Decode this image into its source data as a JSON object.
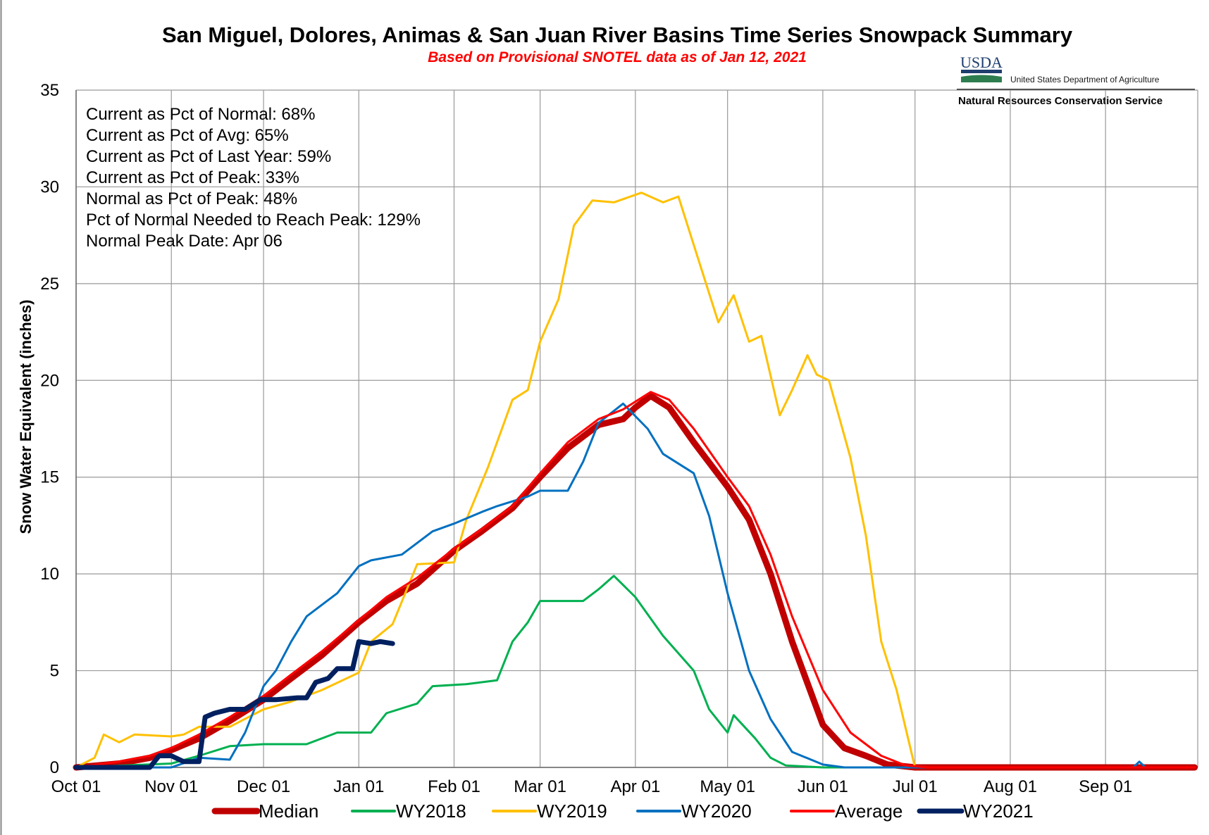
{
  "chart_data": {
    "type": "line",
    "title": "San Miguel, Dolores, Animas & San Juan River Basins Time Series Snowpack Summary",
    "subtitle": "Based on Provisional SNOTEL data as of Jan 12, 2021",
    "ylabel": "Snow Water Equivalent  (inches)",
    "xlabel": "",
    "ylim": [
      0,
      35
    ],
    "y_ticks": [
      "0",
      "5",
      "10",
      "15",
      "20",
      "25",
      "30",
      "35"
    ],
    "x_ticks": [
      "Oct 01",
      "Nov 01",
      "Dec 01",
      "Jan 01",
      "Feb 01",
      "Mar 01",
      "Apr 01",
      "May 01",
      "Jun 01",
      "Jul 01",
      "Aug 01",
      "Sep 01"
    ],
    "grid": true,
    "legend_position": "bottom",
    "stats": [
      "Current as Pct of Normal: 68%",
      "Current as Pct of Avg: 65%",
      "Current as Pct of Last Year: 59%",
      "Current as Pct of Peak: 33%",
      "Normal as Pct of Peak: 48%",
      "Pct of Normal Needed to Reach Peak: 129%",
      "Normal Peak Date: Apr 06"
    ],
    "series": [
      {
        "name": "Median",
        "color": "#c00000",
        "width": 9,
        "points": [
          [
            "Oct 01",
            0
          ],
          [
            "Oct 15",
            0.2
          ],
          [
            "Oct 25",
            0.5
          ],
          [
            "Nov 01",
            0.9
          ],
          [
            "Nov 10",
            1.5
          ],
          [
            "Nov 20",
            2.4
          ],
          [
            "Dec 01",
            3.5
          ],
          [
            "Dec 10",
            4.6
          ],
          [
            "Dec 20",
            5.8
          ],
          [
            "Jan 01",
            7.5
          ],
          [
            "Jan 10",
            8.6
          ],
          [
            "Jan 20",
            9.5
          ],
          [
            "Feb 01",
            11.2
          ],
          [
            "Feb 10",
            12.2
          ],
          [
            "Feb 20",
            13.4
          ],
          [
            "Mar 01",
            15.0
          ],
          [
            "Mar 10",
            16.5
          ],
          [
            "Mar 20",
            17.7
          ],
          [
            "Mar 28",
            18.0
          ],
          [
            "Apr 01",
            18.6
          ],
          [
            "Apr 06",
            19.2
          ],
          [
            "Apr 12",
            18.6
          ],
          [
            "Apr 20",
            16.8
          ],
          [
            "May 01",
            14.5
          ],
          [
            "May 08",
            12.8
          ],
          [
            "May 15",
            10.0
          ],
          [
            "May 22",
            6.5
          ],
          [
            "Jun 01",
            2.2
          ],
          [
            "Jun 08",
            1.0
          ],
          [
            "Jun 15",
            0.6
          ],
          [
            "Jun 22",
            0.15
          ],
          [
            "Jul 01",
            0
          ],
          [
            "Sep 30",
            0
          ]
        ]
      },
      {
        "name": "WY2018",
        "color": "#00b050",
        "width": 3,
        "points": [
          [
            "Oct 01",
            0
          ],
          [
            "Nov 01",
            0.2
          ],
          [
            "Nov 10",
            0.6
          ],
          [
            "Nov 20",
            1.1
          ],
          [
            "Dec 01",
            1.2
          ],
          [
            "Dec 15",
            1.2
          ],
          [
            "Dec 25",
            1.8
          ],
          [
            "Jan 05",
            1.8
          ],
          [
            "Jan 10",
            2.8
          ],
          [
            "Jan 20",
            3.3
          ],
          [
            "Jan 25",
            4.2
          ],
          [
            "Feb 05",
            4.3
          ],
          [
            "Feb 15",
            4.5
          ],
          [
            "Feb 20",
            6.5
          ],
          [
            "Feb 25",
            7.5
          ],
          [
            "Mar 01",
            8.6
          ],
          [
            "Mar 15",
            8.6
          ],
          [
            "Mar 20",
            9.2
          ],
          [
            "Mar 25",
            9.9
          ],
          [
            "Apr 01",
            8.8
          ],
          [
            "Apr 10",
            6.8
          ],
          [
            "Apr 20",
            5.0
          ],
          [
            "Apr 25",
            3.0
          ],
          [
            "May 01",
            1.8
          ],
          [
            "May 03",
            2.7
          ],
          [
            "May 10",
            1.5
          ],
          [
            "May 15",
            0.5
          ],
          [
            "May 20",
            0.1
          ],
          [
            "Jun 01",
            0
          ],
          [
            "Sep 30",
            0
          ]
        ]
      },
      {
        "name": "WY2019",
        "color": "#ffc000",
        "width": 3,
        "points": [
          [
            "Oct 01",
            0
          ],
          [
            "Oct 07",
            0.5
          ],
          [
            "Oct 10",
            1.7
          ],
          [
            "Oct 15",
            1.3
          ],
          [
            "Oct 20",
            1.7
          ],
          [
            "Nov 01",
            1.6
          ],
          [
            "Nov 05",
            1.7
          ],
          [
            "Nov 10",
            2.1
          ],
          [
            "Nov 20",
            2.1
          ],
          [
            "Dec 01",
            3.0
          ],
          [
            "Dec 10",
            3.4
          ],
          [
            "Dec 20",
            4.0
          ],
          [
            "Jan 01",
            4.9
          ],
          [
            "Jan 05",
            6.5
          ],
          [
            "Jan 12",
            7.4
          ],
          [
            "Jan 20",
            10.5
          ],
          [
            "Feb 01",
            10.6
          ],
          [
            "Feb 05",
            12.8
          ],
          [
            "Feb 12",
            15.5
          ],
          [
            "Feb 20",
            19.0
          ],
          [
            "Feb 25",
            19.5
          ],
          [
            "Mar 01",
            22.0
          ],
          [
            "Mar 07",
            24.2
          ],
          [
            "Mar 12",
            28.0
          ],
          [
            "Mar 18",
            29.3
          ],
          [
            "Mar 25",
            29.2
          ],
          [
            "Apr 03",
            29.7
          ],
          [
            "Apr 10",
            29.2
          ],
          [
            "Apr 15",
            29.5
          ],
          [
            "Apr 20",
            27.0
          ],
          [
            "Apr 28",
            23.0
          ],
          [
            "May 03",
            24.4
          ],
          [
            "May 08",
            22.0
          ],
          [
            "May 12",
            22.3
          ],
          [
            "May 18",
            18.2
          ],
          [
            "May 22",
            19.5
          ],
          [
            "May 27",
            21.3
          ],
          [
            "May 30",
            20.3
          ],
          [
            "Jun 03",
            20.0
          ],
          [
            "Jun 10",
            16.0
          ],
          [
            "Jun 15",
            12.0
          ],
          [
            "Jun 20",
            6.5
          ],
          [
            "Jun 25",
            4.0
          ],
          [
            "Jun 28",
            2.0
          ],
          [
            "Jul 01",
            0
          ],
          [
            "Sep 30",
            0
          ]
        ]
      },
      {
        "name": "WY2020",
        "color": "#0070c0",
        "width": 3,
        "points": [
          [
            "Oct 01",
            0
          ],
          [
            "Nov 01",
            0
          ],
          [
            "Nov 10",
            0.5
          ],
          [
            "Nov 20",
            0.4
          ],
          [
            "Nov 25",
            1.8
          ],
          [
            "Dec 01",
            4.2
          ],
          [
            "Dec 05",
            5.0
          ],
          [
            "Dec 10",
            6.5
          ],
          [
            "Dec 15",
            7.8
          ],
          [
            "Dec 25",
            9.0
          ],
          [
            "Jan 01",
            10.4
          ],
          [
            "Jan 05",
            10.7
          ],
          [
            "Jan 15",
            11.0
          ],
          [
            "Jan 25",
            12.2
          ],
          [
            "Feb 01",
            12.6
          ],
          [
            "Feb 10",
            13.2
          ],
          [
            "Feb 15",
            13.5
          ],
          [
            "Feb 25",
            14.0
          ],
          [
            "Mar 01",
            14.3
          ],
          [
            "Mar 10",
            14.3
          ],
          [
            "Mar 15",
            15.8
          ],
          [
            "Mar 20",
            17.8
          ],
          [
            "Mar 28",
            18.8
          ],
          [
            "Apr 05",
            17.5
          ],
          [
            "Apr 10",
            16.2
          ],
          [
            "Apr 20",
            15.2
          ],
          [
            "Apr 25",
            13.0
          ],
          [
            "May 01",
            9.0
          ],
          [
            "May 08",
            5.0
          ],
          [
            "May 15",
            2.5
          ],
          [
            "May 22",
            0.8
          ],
          [
            "Jun 01",
            0.15
          ],
          [
            "Jun 08",
            0
          ],
          [
            "Sep 10",
            0
          ],
          [
            "Sep 12",
            0.3
          ],
          [
            "Sep 14",
            0
          ],
          [
            "Sep 30",
            0
          ]
        ]
      },
      {
        "name": "Average",
        "color": "#ff0000",
        "width": 3,
        "points": [
          [
            "Oct 01",
            0
          ],
          [
            "Oct 15",
            0.3
          ],
          [
            "Oct 25",
            0.6
          ],
          [
            "Nov 01",
            1.0
          ],
          [
            "Nov 10",
            1.7
          ],
          [
            "Nov 20",
            2.6
          ],
          [
            "Dec 01",
            3.7
          ],
          [
            "Dec 10",
            4.8
          ],
          [
            "Dec 20",
            6.0
          ],
          [
            "Jan 01",
            7.6
          ],
          [
            "Jan 10",
            8.8
          ],
          [
            "Jan 20",
            9.8
          ],
          [
            "Feb 01",
            11.3
          ],
          [
            "Feb 10",
            12.3
          ],
          [
            "Feb 20",
            13.5
          ],
          [
            "Mar 01",
            15.2
          ],
          [
            "Mar 10",
            16.8
          ],
          [
            "Mar 20",
            18.0
          ],
          [
            "Mar 28",
            18.5
          ],
          [
            "Apr 01",
            18.9
          ],
          [
            "Apr 06",
            19.4
          ],
          [
            "Apr 12",
            19.0
          ],
          [
            "Apr 20",
            17.5
          ],
          [
            "May 01",
            15.0
          ],
          [
            "May 08",
            13.5
          ],
          [
            "May 15",
            11.0
          ],
          [
            "May 22",
            7.8
          ],
          [
            "Jun 01",
            4.0
          ],
          [
            "Jun 10",
            1.8
          ],
          [
            "Jun 20",
            0.6
          ],
          [
            "Jun 28",
            0.1
          ],
          [
            "Jul 05",
            0
          ],
          [
            "Sep 30",
            0
          ]
        ]
      },
      {
        "name": "WY2021",
        "color": "#002060",
        "width": 7,
        "points": [
          [
            "Oct 01",
            0
          ],
          [
            "Oct 25",
            0
          ],
          [
            "Oct 28",
            0.6
          ],
          [
            "Nov 01",
            0.6
          ],
          [
            "Nov 05",
            0.3
          ],
          [
            "Nov 10",
            0.3
          ],
          [
            "Nov 12",
            2.6
          ],
          [
            "Nov 15",
            2.8
          ],
          [
            "Nov 20",
            3.0
          ],
          [
            "Nov 25",
            3.0
          ],
          [
            "Nov 30",
            3.5
          ],
          [
            "Dec 05",
            3.5
          ],
          [
            "Dec 12",
            3.6
          ],
          [
            "Dec 15",
            3.6
          ],
          [
            "Dec 18",
            4.4
          ],
          [
            "Dec 22",
            4.6
          ],
          [
            "Dec 25",
            5.1
          ],
          [
            "Dec 30",
            5.1
          ],
          [
            "Jan 01",
            6.5
          ],
          [
            "Jan 05",
            6.4
          ],
          [
            "Jan 08",
            6.5
          ],
          [
            "Jan 12",
            6.4
          ]
        ]
      }
    ]
  },
  "branding": {
    "agency_abbrev": "USDA",
    "department": "United States Department of Agriculture",
    "service": "Natural Resources Conservation Service"
  }
}
